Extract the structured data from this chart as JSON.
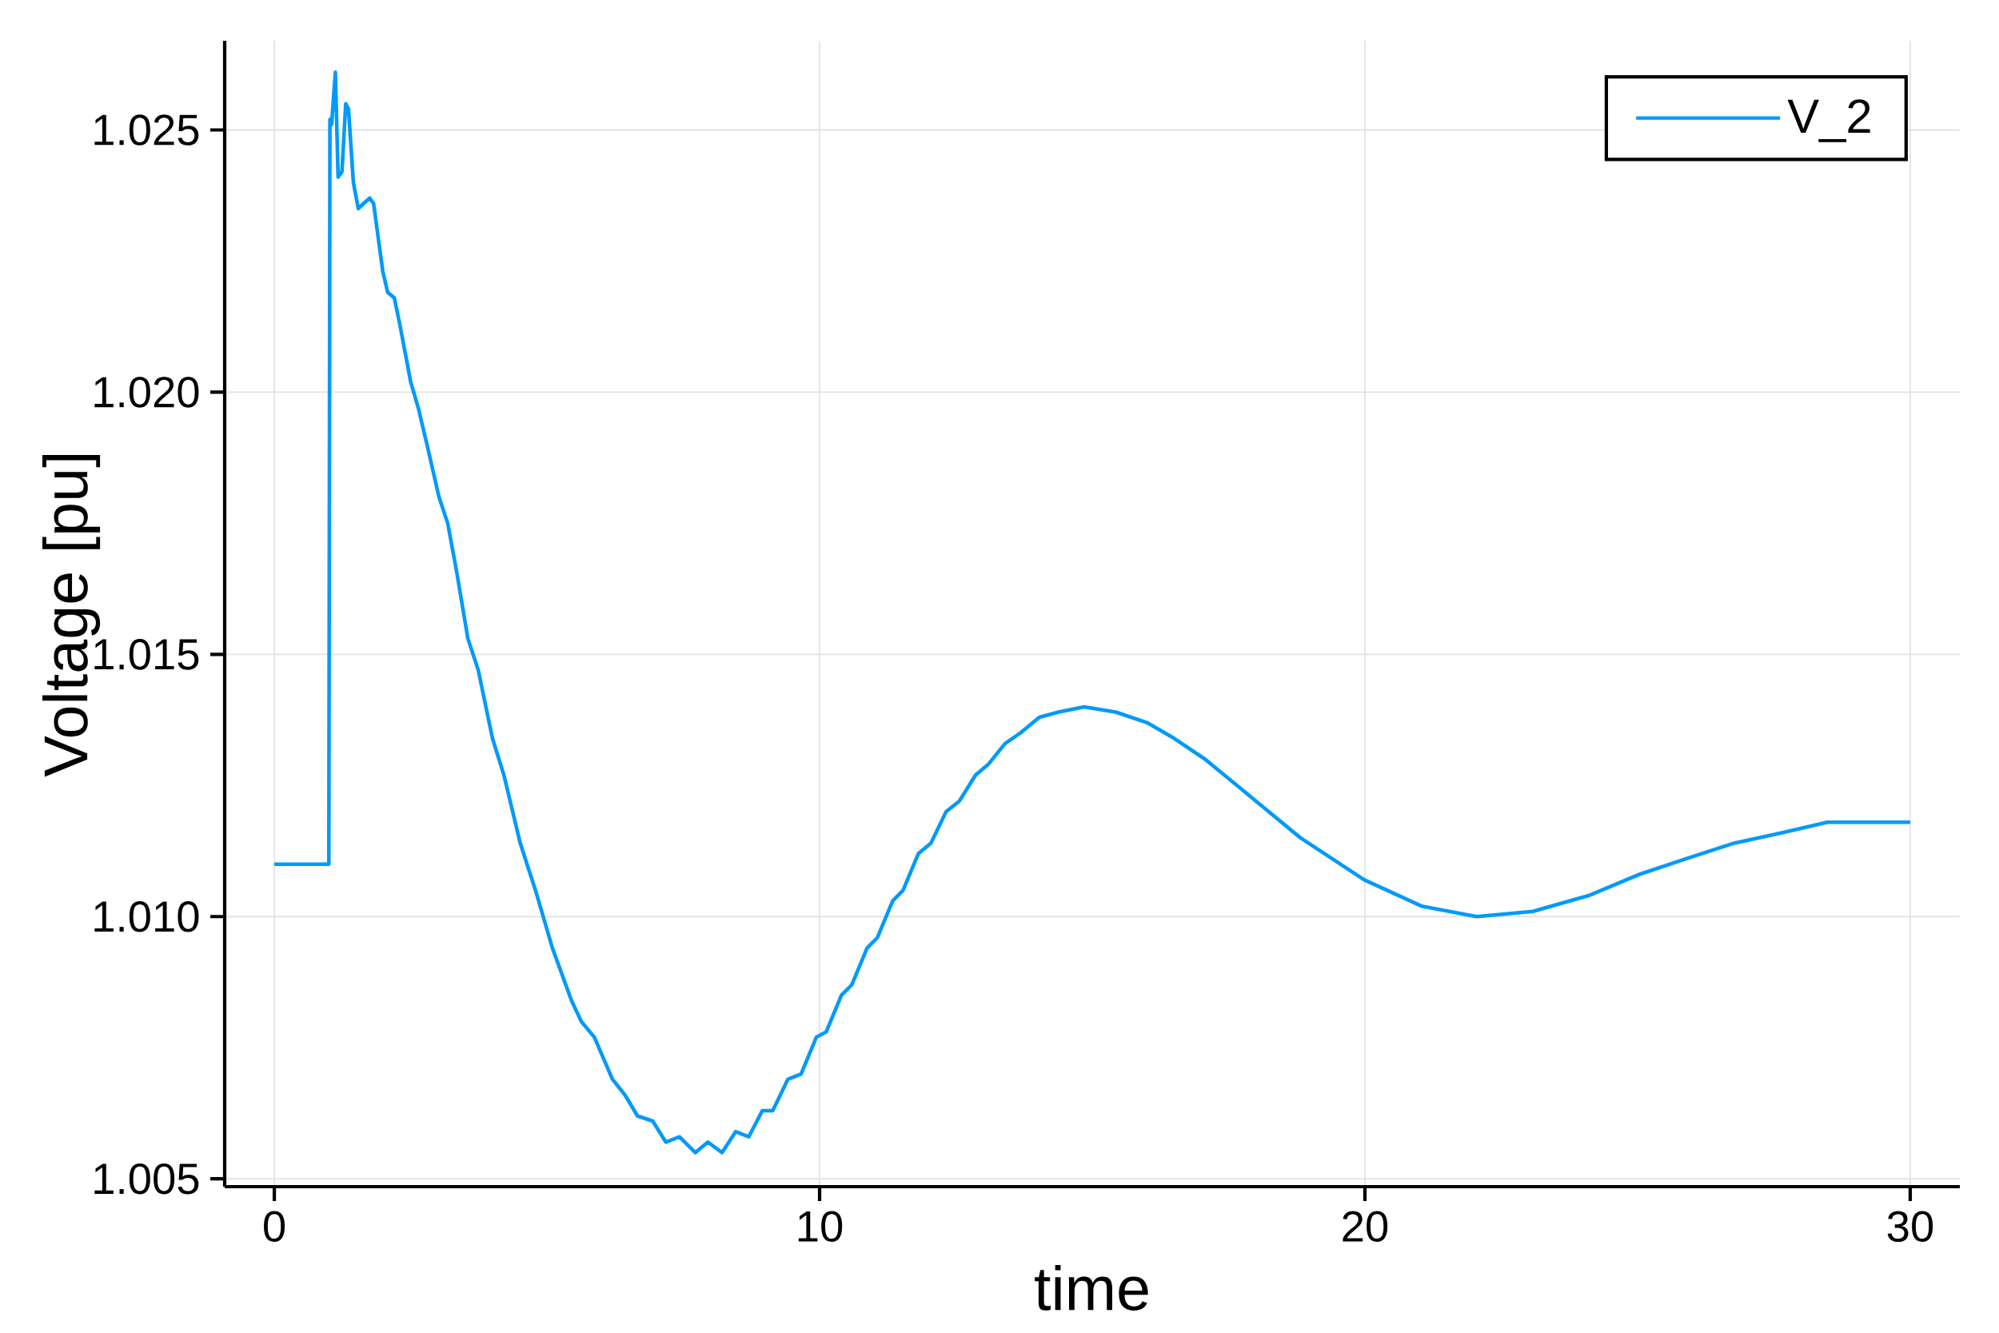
{
  "chart_data": {
    "type": "line",
    "xlabel": "time",
    "ylabel": "Voltage [pu]",
    "xlim": [
      -0.91,
      30.91
    ],
    "ylim": [
      1.00485,
      1.0267
    ],
    "xticks": [
      0,
      10,
      20,
      30
    ],
    "yticks": [
      1.005,
      {
        "value": 1.01,
        "label": "1.010"
      },
      1.015,
      {
        "value": 1.02,
        "label": "1.020"
      },
      1.025
    ],
    "grid": true,
    "legend": "top right",
    "series": [
      {
        "name": "V_2",
        "color": "#009af9",
        "x": [
          0,
          0.98,
          1.0,
          1.02,
          1.05,
          1.12,
          1.17,
          1.24,
          1.31,
          1.36,
          1.45,
          1.54,
          1.64,
          1.75,
          1.82,
          1.99,
          2.08,
          2.2,
          2.3,
          2.5,
          2.64,
          2.8,
          3.02,
          3.18,
          3.34,
          3.55,
          3.74,
          4.0,
          4.21,
          4.51,
          4.79,
          5.1,
          5.45,
          5.63,
          5.87,
          6.2,
          6.43,
          6.66,
          6.94,
          7.18,
          7.43,
          7.72,
          7.95,
          8.21,
          8.46,
          8.7,
          8.95,
          9.14,
          9.42,
          9.66,
          9.94,
          10.12,
          10.4,
          10.59,
          10.87,
          11.06,
          11.34,
          11.53,
          11.81,
          12.04,
          12.32,
          12.56,
          12.86,
          13.09,
          13.4,
          13.68,
          14.03,
          14.38,
          14.85,
          15.43,
          16.0,
          16.5,
          17.07,
          17.77,
          18.82,
          19.99,
          21.04,
          22.05,
          23.08,
          24.1,
          25.02,
          25.88,
          26.77,
          27.66,
          28.48,
          29.3,
          30
        ],
        "values": [
          1.011,
          1.011,
          1.011,
          1.0252,
          1.0251,
          1.0261,
          1.0241,
          1.0242,
          1.0255,
          1.0254,
          1.024,
          1.0235,
          1.0236,
          1.0237,
          1.0236,
          1.0223,
          1.0219,
          1.0218,
          1.0213,
          1.0202,
          1.0197,
          1.019,
          1.018,
          1.0175,
          1.0166,
          1.0153,
          1.0147,
          1.0134,
          1.0127,
          1.0114,
          1.0105,
          1.0094,
          1.0084,
          1.008,
          1.0077,
          1.0069,
          1.0066,
          1.0062,
          1.0061,
          1.0057,
          1.0058,
          1.0055,
          1.0057,
          1.0055,
          1.0059,
          1.0058,
          1.0063,
          1.0063,
          1.0069,
          1.007,
          1.0077,
          1.0078,
          1.0085,
          1.0087,
          1.0094,
          1.0096,
          1.0103,
          1.0105,
          1.0112,
          1.0114,
          1.012,
          1.0122,
          1.0127,
          1.0129,
          1.0133,
          1.0135,
          1.0138,
          1.0139,
          1.014,
          1.0139,
          1.0137,
          1.0134,
          1.013,
          1.0124,
          1.0115,
          1.0107,
          1.0102,
          1.01,
          1.0101,
          1.0104,
          1.0108,
          1.0111,
          1.0114,
          1.0116,
          1.0118,
          1.0118,
          1.0118
        ]
      }
    ]
  }
}
